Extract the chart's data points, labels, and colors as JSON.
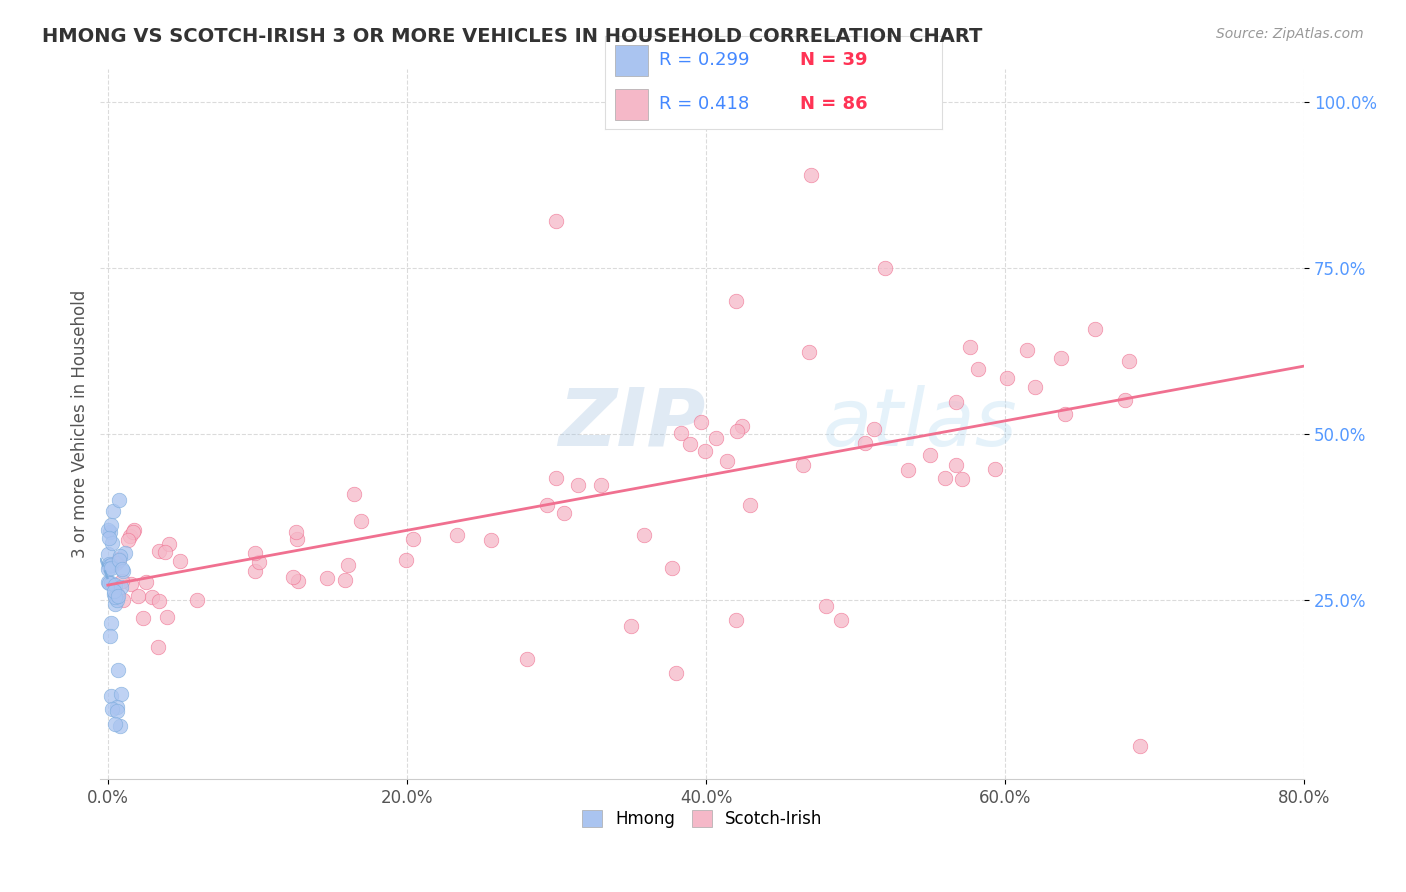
{
  "title": "HMONG VS SCOTCH-IRISH 3 OR MORE VEHICLES IN HOUSEHOLD CORRELATION CHART",
  "source_text": "Source: ZipAtlas.com",
  "ylabel": "3 or more Vehicles in Household",
  "xlim": [
    -0.005,
    0.8
  ],
  "ylim": [
    -0.02,
    1.05
  ],
  "xtick_values": [
    0.0,
    0.2,
    0.4,
    0.6,
    0.8
  ],
  "xtick_labels": [
    "0.0%",
    "20.0%",
    "40.0%",
    "60.0%",
    "80.0%"
  ],
  "ytick_values": [
    0.25,
    0.5,
    0.75,
    1.0
  ],
  "ytick_labels": [
    "25.0%",
    "50.0%",
    "75.0%",
    "100.0%"
  ],
  "hmong_color": "#aac4f0",
  "scotch_color": "#f5b8c8",
  "hmong_line_color": "#7aabdc",
  "scotch_line_color": "#f07090",
  "hmong_marker_edge": "#7aabdc",
  "scotch_marker_edge": "#f07090",
  "background_color": "#ffffff",
  "grid_color": "#cccccc",
  "watermark_zip": "ZIP",
  "watermark_atlas": "atlas",
  "legend_R_hmong": "0.299",
  "legend_N_hmong": "39",
  "legend_R_scotch": "0.418",
  "legend_N_scotch": "86",
  "title_color": "#333333",
  "source_color": "#999999",
  "ytick_color": "#5599ff",
  "xtick_color": "#555555",
  "ylabel_color": "#555555"
}
